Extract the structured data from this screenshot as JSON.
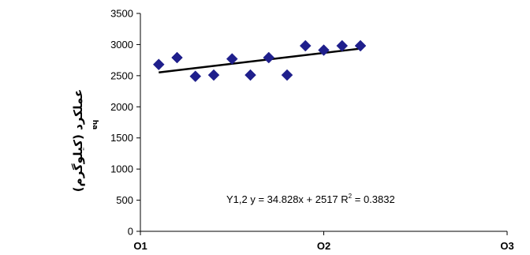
{
  "chart_data": {
    "type": "scatter",
    "title": "",
    "xlabel": "",
    "ylabel": "عملکرد (کیلوگرم)",
    "ylabel_sub": "ha",
    "ylim": [
      0,
      3500
    ],
    "yticks": [
      0,
      500,
      1000,
      1500,
      2000,
      2500,
      3000,
      3500
    ],
    "xlim": [
      0,
      20
    ],
    "xticks": [
      {
        "value": 0,
        "label": "O1"
      },
      {
        "value": 10,
        "label": "O2"
      },
      {
        "value": 20,
        "label": "O3"
      }
    ],
    "grid": false,
    "legend": "none",
    "marker_color": "#1F1F8C",
    "line_color": "#000000",
    "series": [
      {
        "x": [
          1,
          2,
          3,
          4,
          5,
          6,
          7,
          8,
          9,
          10,
          11,
          12
        ],
        "values": [
          2680,
          2790,
          2490,
          2510,
          2770,
          2510,
          2790,
          2510,
          2980,
          2910,
          2980,
          2980
        ]
      }
    ],
    "trendline": {
      "slope": 34.828,
      "intercept": 2517,
      "x_from": 1,
      "x_to": 12
    },
    "annotation": {
      "main": "Y1,2 y = 34.828x + 2517 R",
      "sup": "2",
      "tail": " = 0.3832"
    }
  }
}
